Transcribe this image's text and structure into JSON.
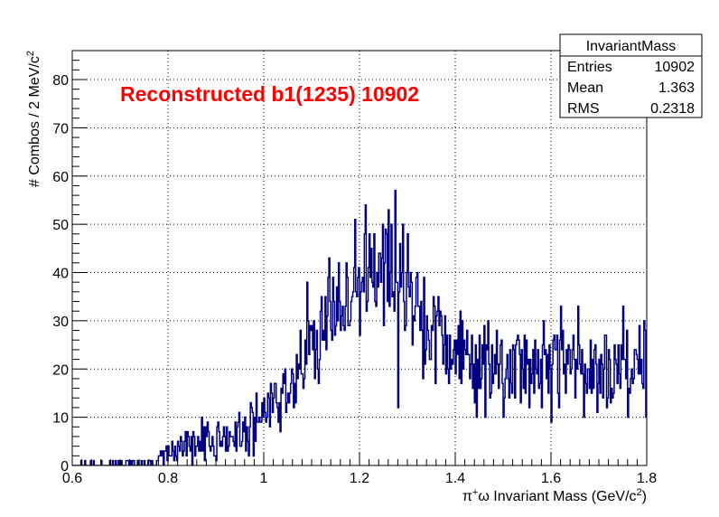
{
  "chart_data": {
    "type": "histogram",
    "title": "Reconstructed b1(1235) 10902",
    "title_color": "#ff0000",
    "xlabel": "π⁺ω Invariant Mass (GeV/c²)",
    "ylabel": "# Combos / 2 MeV/c²",
    "xlim": [
      0.6,
      1.8
    ],
    "ylim": [
      0,
      86
    ],
    "bin_width": 0.002,
    "x_ticks": [
      0.6,
      0.8,
      1.0,
      1.2,
      1.4,
      1.6,
      1.8
    ],
    "x_tick_labels": [
      "0.6",
      "0.8",
      "1",
      "1.2",
      "1.4",
      "1.6",
      "1.8"
    ],
    "y_ticks": [
      0,
      10,
      20,
      30,
      40,
      50,
      60,
      70,
      80
    ],
    "y_tick_labels": [
      "0",
      "10",
      "20",
      "30",
      "40",
      "50",
      "60",
      "70",
      "80"
    ],
    "grid": true,
    "line_color": "#000080",
    "keypoints": [
      [
        0.6,
        0
      ],
      [
        0.64,
        0.5
      ],
      [
        0.7,
        1
      ],
      [
        0.76,
        1.5
      ],
      [
        0.8,
        2.5
      ],
      [
        0.84,
        4
      ],
      [
        0.88,
        5
      ],
      [
        0.92,
        6
      ],
      [
        0.96,
        8
      ],
      [
        1.0,
        12
      ],
      [
        1.04,
        15
      ],
      [
        1.08,
        20
      ],
      [
        1.12,
        27
      ],
      [
        1.16,
        33
      ],
      [
        1.2,
        39
      ],
      [
        1.24,
        41
      ],
      [
        1.28,
        38
      ],
      [
        1.32,
        30
      ],
      [
        1.36,
        26
      ],
      [
        1.4,
        23
      ],
      [
        1.44,
        22
      ],
      [
        1.5,
        21
      ],
      [
        1.6,
        21
      ],
      [
        1.7,
        21
      ],
      [
        1.8,
        20
      ]
    ],
    "spikes": [
      [
        0.84,
        7
      ],
      [
        1.09,
        38
      ],
      [
        1.19,
        51
      ],
      [
        1.22,
        48
      ],
      [
        1.23,
        48
      ],
      [
        1.255,
        49
      ],
      [
        1.275,
        57
      ],
      [
        1.28,
        12
      ],
      [
        1.32,
        40
      ],
      [
        1.355,
        35
      ],
      [
        1.415,
        30
      ],
      [
        1.475,
        15
      ],
      [
        1.6,
        9
      ],
      [
        1.62,
        33
      ],
      [
        1.75,
        33
      ],
      [
        1.76,
        10
      ]
    ],
    "random_seed": 1235,
    "stats_box": {
      "name": "InvariantMass",
      "rows": [
        {
          "label": "Entries",
          "value": "10902"
        },
        {
          "label": "Mean",
          "value": "1.363"
        },
        {
          "label": "RMS",
          "value": "0.2318"
        }
      ]
    }
  }
}
